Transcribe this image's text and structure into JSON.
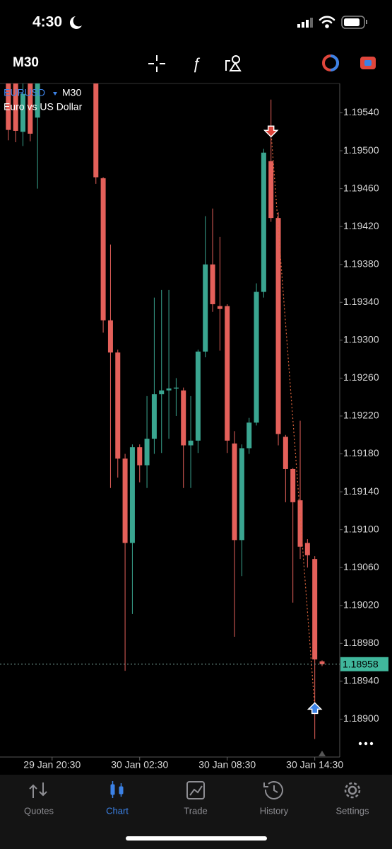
{
  "status_bar": {
    "time": "4:30"
  },
  "toolbar": {
    "timeframe": "M30"
  },
  "chart_data": {
    "type": "candlestick",
    "symbol": "EURUSD",
    "timeframe": "M30",
    "description": "Euro vs US Dollar",
    "categories": [
      "29 Jan 17:30",
      "29 Jan 18:00",
      "29 Jan 18:30",
      "29 Jan 19:00",
      "29 Jan 19:30",
      "29 Jan 20:00",
      "29 Jan 20:30",
      "29 Jan 21:00",
      "29 Jan 21:30",
      "29 Jan 22:00",
      "29 Jan 22:30",
      "29 Jan 23:00",
      "29 Jan 23:30",
      "30 Jan 00:00",
      "30 Jan 00:30",
      "30 Jan 01:00",
      "30 Jan 01:30",
      "30 Jan 02:00",
      "30 Jan 02:30",
      "30 Jan 03:00",
      "30 Jan 03:30",
      "30 Jan 04:00",
      "30 Jan 04:30",
      "30 Jan 05:00",
      "30 Jan 05:30",
      "30 Jan 06:00",
      "30 Jan 06:30",
      "30 Jan 07:00",
      "30 Jan 07:30",
      "30 Jan 08:00",
      "30 Jan 08:30",
      "30 Jan 09:00",
      "30 Jan 09:30",
      "30 Jan 10:00",
      "30 Jan 10:30",
      "30 Jan 11:00",
      "30 Jan 11:30",
      "30 Jan 12:00",
      "30 Jan 12:30",
      "30 Jan 13:00",
      "30 Jan 13:30",
      "30 Jan 14:00",
      "30 Jan 14:30",
      "30 Jan 15:00"
    ],
    "open": [
      1.1959,
      1.1959,
      1.1952,
      1.1959,
      1.19535,
      null,
      null,
      null,
      null,
      null,
      null,
      null,
      1.1959,
      1.19471,
      1.19321,
      1.19287,
      1.19175,
      1.19086,
      1.19187,
      1.19168,
      1.19196,
      1.19243,
      1.19247,
      1.19249,
      1.19247,
      1.19189,
      1.19194,
      1.19288,
      1.1938,
      1.19336,
      1.19336,
      1.19191,
      1.19089,
      1.19186,
      1.19213,
      1.19351,
      1.19489,
      1.19429,
      1.19198,
      1.19164,
      1.19131,
      1.19086,
      1.19069,
      1.18961
    ],
    "high": [
      1.196,
      1.196,
      1.196,
      1.196,
      1.1961,
      null,
      null,
      null,
      null,
      null,
      null,
      null,
      1.196,
      1.19472,
      1.19401,
      1.1929,
      1.1918,
      1.1919,
      1.1919,
      1.19241,
      1.19345,
      1.19353,
      1.19353,
      1.1926,
      1.1925,
      1.19241,
      1.1929,
      1.19431,
      1.19439,
      1.19409,
      1.19338,
      1.19204,
      1.1919,
      1.19218,
      1.1936,
      1.19502,
      1.19554,
      1.19435,
      1.192,
      1.19165,
      1.19215,
      1.1909,
      1.19072,
      1.18962
    ],
    "low": [
      1.19511,
      1.19509,
      1.19505,
      1.1951,
      1.1946,
      null,
      null,
      null,
      null,
      null,
      null,
      null,
      1.19465,
      1.19308,
      1.19144,
      1.19155,
      1.18951,
      1.19011,
      1.1915,
      1.19144,
      1.1918,
      1.19181,
      1.19196,
      1.1922,
      1.19144,
      1.19144,
      1.19181,
      1.19282,
      1.1933,
      1.19289,
      1.19181,
      1.18987,
      1.19051,
      1.1918,
      1.1921,
      1.19345,
      1.19425,
      1.19189,
      1.19129,
      1.19023,
      1.19069,
      1.1906,
      1.18879,
      1.18956
    ],
    "close": [
      1.19522,
      1.19521,
      1.1956,
      1.19518,
      1.1959,
      null,
      null,
      null,
      null,
      null,
      null,
      null,
      1.19472,
      1.19321,
      1.19287,
      1.19175,
      1.19086,
      1.19187,
      1.19168,
      1.19196,
      1.19243,
      1.19247,
      1.19249,
      1.1925,
      1.19189,
      1.19194,
      1.19288,
      1.1938,
      1.19338,
      1.19333,
      1.19194,
      1.19089,
      1.19186,
      1.19213,
      1.19351,
      1.19498,
      1.19429,
      1.19201,
      1.19164,
      1.19129,
      1.19082,
      1.19073,
      1.18963,
      1.18958
    ],
    "up_color": "#3aa590",
    "down_color": "#e4605a",
    "last": 1.18958,
    "last_color": "#40b79c",
    "markers": [
      {
        "category": "30 Jan 11:30",
        "price": 1.1952,
        "direction": "down",
        "color": "#e0463c"
      },
      {
        "category": "30 Jan 14:30",
        "price": 1.18912,
        "direction": "up",
        "color": "#3c82e6"
      }
    ],
    "ylim": [
      1.1886,
      1.19571
    ],
    "yticks": [
      {
        "value": 1.1954,
        "label": "1.19540"
      },
      {
        "value": 1.195,
        "label": "1.19500"
      },
      {
        "value": 1.1946,
        "label": "1.19460"
      },
      {
        "value": 1.1942,
        "label": "1.19420"
      },
      {
        "value": 1.1938,
        "label": "1.19380"
      },
      {
        "value": 1.1934,
        "label": "1.19340"
      },
      {
        "value": 1.193,
        "label": "1.19300"
      },
      {
        "value": 1.1926,
        "label": "1.19260"
      },
      {
        "value": 1.1922,
        "label": "1.19220"
      },
      {
        "value": 1.1918,
        "label": "1.19180"
      },
      {
        "value": 1.1914,
        "label": "1.19140"
      },
      {
        "value": 1.191,
        "label": "1.19100"
      },
      {
        "value": 1.1906,
        "label": "1.19060"
      },
      {
        "value": 1.1902,
        "label": "1.19020"
      },
      {
        "value": 1.1898,
        "label": "1.18980"
      },
      {
        "value": 1.1894,
        "label": "1.18940"
      },
      {
        "value": 1.189,
        "label": "1.18900"
      }
    ],
    "xticks": [
      "29 Jan 20:30",
      "30 Jan 02:30",
      "30 Jan 08:30",
      "30 Jan 14:30"
    ]
  },
  "nav": [
    "Quotes",
    "Chart",
    "Trade",
    "History",
    "Settings"
  ],
  "nav_active": 1
}
